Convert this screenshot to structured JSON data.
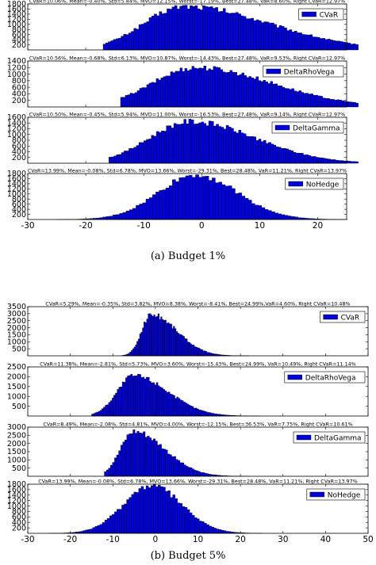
{
  "figure": {
    "caption_a": "(a) Budget 1%",
    "caption_b": "(b) Budget 5%",
    "bar_color": "#0000dd",
    "edge_color": "#000000"
  },
  "chart_data": [
    {
      "type": "bar",
      "group": "a",
      "legend": "CVaR",
      "stats": "CVaR=10.06%, Mean=-0.40%, Std=5.84%, MVO=12.15%, Worst=-17.19%, Best=27.48%, VaR=8.60%, Right CVaR=12.97%",
      "xlim": [
        -30,
        25
      ],
      "ylim": [
        0,
        1800
      ],
      "yticks": [
        200,
        400,
        600,
        800,
        1000,
        1200,
        1400,
        1600,
        1800
      ],
      "mean": -3,
      "std": 7.0,
      "skew": 3.2,
      "peak": 1700,
      "xmin": -17,
      "xmax": 27
    },
    {
      "type": "bar",
      "group": "a",
      "legend": "DeltaRhoVega",
      "stats": "CVaR=10.56%, Mean=-0.68%, Std=6.13%, MVO=10.87%, Worst=-14.43%, Best=27.48%, VaR=9.53%, Right CVaR=12.97%",
      "xlim": [
        -30,
        25
      ],
      "ylim": [
        0,
        1400
      ],
      "yticks": [
        200,
        400,
        600,
        800,
        1000,
        1200,
        1400
      ],
      "mean": -1,
      "std": 7.5,
      "skew": 2.5,
      "peak": 1200,
      "xmin": -14,
      "xmax": 27
    },
    {
      "type": "bar",
      "group": "a",
      "legend": "DeltaGamma",
      "stats": "CVaR=10.50%, Mean=-0.45%, Std=5.94%, MVO=11.00%, Worst=-16.53%, Best=27.48%, VaR=9.14%, Right CVaR=12.97%",
      "xlim": [
        -30,
        25
      ],
      "ylim": [
        0,
        1600
      ],
      "yticks": [
        200,
        400,
        600,
        800,
        1000,
        1200,
        1400,
        1600
      ],
      "mean": -2,
      "std": 7.0,
      "skew": 2.2,
      "peak": 1450,
      "xmin": -16,
      "xmax": 27
    },
    {
      "type": "bar",
      "group": "a",
      "legend": "NoHedge",
      "stats": "CVaR=13.99%, Mean=-0.08%, Std=6.78%, MVO=13.66%, Worst=-29.31%, Best=28.48%, VaR=11.21%, Right CVaR=13.97%",
      "xlim": [
        -30,
        25
      ],
      "ylim": [
        0,
        1800
      ],
      "yticks": [
        200,
        400,
        600,
        800,
        1000,
        1200,
        1400,
        1600,
        1800
      ],
      "xticks": [
        -30,
        -20,
        -10,
        0,
        10,
        20
      ],
      "mean": -1,
      "std": 6.5,
      "skew": 1.2,
      "peak": 1750,
      "xmin": -29,
      "xmax": 28
    },
    {
      "type": "bar",
      "group": "b",
      "legend": "CVaR",
      "stats": "CVaR=5.29%, Mean=-0.35%, Std=3.82%, MVO=8.38%, Worst=-8.41%, Best=24.99%,VaR=4.60%, Right CVaR=10.48%",
      "xlim": [
        -30,
        50
      ],
      "ylim": [
        0,
        3500
      ],
      "yticks": [
        500,
        1000,
        1500,
        2000,
        2500,
        3000,
        3500
      ],
      "mean": -1,
      "std": 2.2,
      "skew": 4.5,
      "peak": 2950,
      "xmin": -8,
      "xmax": 25
    },
    {
      "type": "bar",
      "group": "b",
      "legend": "DeltaRhoVega",
      "stats": "CVaR=11.38%, Mean=-2.81%, Std=5.73%, MVO=3.60%, Worst=-15.43%, Best=24.99%, VaR=10.49%, Right CVaR=11.14%",
      "xlim": [
        -30,
        50
      ],
      "ylim": [
        0,
        2500
      ],
      "yticks": [
        500,
        1000,
        1500,
        2000,
        2500
      ],
      "mean": -5,
      "std": 4.0,
      "skew": 3.0,
      "peak": 2050,
      "xmin": -15,
      "xmax": 25
    },
    {
      "type": "bar",
      "group": "b",
      "legend": "DeltaGamma",
      "stats": "CVaR=8.49%, Mean=-2.08%, Std=4.81%, MVO=4.00%, Worst=-12.15%, Best=36.53%, VaR=7.75%, Right CVaR=10.61%",
      "xlim": [
        -30,
        50
      ],
      "ylim": [
        0,
        3000
      ],
      "yticks": [
        500,
        1000,
        1500,
        2000,
        2500,
        3000
      ],
      "mean": -5,
      "std": 3.2,
      "skew": 3.5,
      "peak": 2750,
      "xmin": -12,
      "xmax": 36
    },
    {
      "type": "bar",
      "group": "b",
      "legend": "NoHedge",
      "stats": "CVaR=13.99%, Mean=-0.08%, Std=6.78%, MVO=13.66%, Worst=-29.31%, Best=28.48%, VaR=11.21%, Right CVaR=13.97%",
      "xlim": [
        -30,
        50
      ],
      "ylim": [
        0,
        1800
      ],
      "yticks": [
        200,
        400,
        600,
        800,
        1000,
        1200,
        1400,
        1600,
        1800
      ],
      "xticks": [
        -30,
        -20,
        -10,
        0,
        10,
        20,
        30,
        40,
        50
      ],
      "mean": -1,
      "std": 6.5,
      "skew": 1.2,
      "peak": 1750,
      "xmin": -29,
      "xmax": 28
    }
  ]
}
